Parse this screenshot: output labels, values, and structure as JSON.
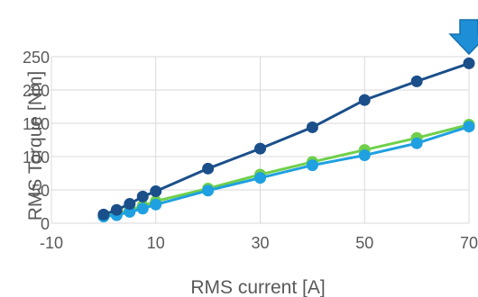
{
  "chart_data": {
    "type": "line",
    "title": "",
    "xlabel": "RMS current [A]",
    "ylabel": "RMS Torque [Nm]",
    "xlim": [
      -10,
      70
    ],
    "ylim": [
      0,
      250
    ],
    "x_ticks": [
      "-10",
      "10",
      "30",
      "50",
      "70"
    ],
    "y_ticks": [
      "0",
      "50",
      "100",
      "150",
      "200",
      "250"
    ],
    "grid": {
      "horizontal": true,
      "vertical": true
    },
    "legend": "none",
    "series": [
      {
        "color": "#6fd04a",
        "points": [
          [
            0,
            11
          ],
          [
            2.5,
            14
          ],
          [
            5,
            20
          ],
          [
            7.5,
            26
          ],
          [
            10,
            33
          ],
          [
            20,
            52
          ],
          [
            30,
            73
          ],
          [
            40,
            92
          ],
          [
            50,
            110
          ],
          [
            60,
            128
          ],
          [
            70,
            148
          ]
        ]
      },
      {
        "color": "#1fa0e0",
        "points": [
          [
            0,
            10
          ],
          [
            2.5,
            12
          ],
          [
            5,
            17
          ],
          [
            7.5,
            22
          ],
          [
            10,
            28
          ],
          [
            20,
            49
          ],
          [
            30,
            68
          ],
          [
            40,
            87
          ],
          [
            50,
            102
          ],
          [
            60,
            120
          ],
          [
            70,
            145
          ]
        ]
      },
      {
        "color": "#1a4f8a",
        "points": [
          [
            0,
            13
          ],
          [
            2.5,
            20
          ],
          [
            5,
            29
          ],
          [
            7.5,
            40
          ],
          [
            10,
            48
          ],
          [
            20,
            82
          ],
          [
            30,
            112
          ],
          [
            40,
            144
          ],
          [
            50,
            185
          ],
          [
            60,
            213
          ],
          [
            70,
            240
          ]
        ]
      }
    ],
    "annotation": {
      "type": "down-arrow",
      "color": "#1e8fd6",
      "at_x": 70
    }
  }
}
